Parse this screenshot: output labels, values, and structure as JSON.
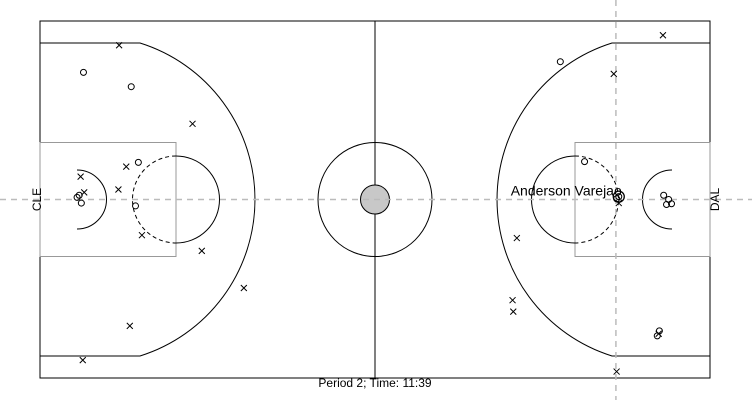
{
  "chart_data": {
    "type": "scatter",
    "title": "",
    "caption": "Period 2; Time: 11:39",
    "teams": {
      "left": "CLE",
      "right": "DAL"
    },
    "xlim": [
      0,
      94
    ],
    "ylim": [
      0,
      50
    ],
    "highlight_label": "Anderson Varejao",
    "highlight_point": [
      81.2,
      25.4
    ],
    "crosshair": {
      "x": 80.8,
      "y": 25
    },
    "legend": {
      "x": "x",
      "o": "o"
    },
    "series": [
      {
        "name": "",
        "marker": "x",
        "points": [
          [
            11.1,
            46.6
          ],
          [
            21.4,
            35.6
          ],
          [
            12.1,
            29.6
          ],
          [
            5.7,
            28.2
          ],
          [
            11.0,
            26.4
          ],
          [
            6.2,
            26.0
          ],
          [
            14.3,
            20.0
          ],
          [
            22.7,
            17.8
          ],
          [
            28.6,
            12.6
          ],
          [
            12.6,
            7.3
          ],
          [
            6.0,
            2.5
          ],
          [
            87.4,
            48.0
          ],
          [
            80.5,
            42.6
          ],
          [
            66.9,
            19.6
          ],
          [
            66.3,
            10.9
          ],
          [
            66.4,
            9.3
          ],
          [
            86.8,
            6.2
          ],
          [
            80.9,
            0.9
          ],
          [
            81.2,
            24.5
          ]
        ]
      },
      {
        "name": "",
        "marker": "o",
        "points": [
          [
            6.1,
            42.8
          ],
          [
            12.8,
            40.8
          ],
          [
            13.8,
            30.2
          ],
          [
            5.2,
            25.3
          ],
          [
            5.8,
            24.5
          ],
          [
            5.5,
            25.6
          ],
          [
            13.4,
            24.1
          ],
          [
            73.0,
            44.3
          ],
          [
            76.4,
            30.3
          ],
          [
            81.2,
            25.4
          ],
          [
            80.9,
            25.1
          ],
          [
            87.5,
            25.6
          ],
          [
            88.2,
            25.0
          ],
          [
            88.6,
            24.4
          ],
          [
            87.9,
            24.3
          ],
          [
            86.9,
            6.6
          ],
          [
            86.6,
            5.9
          ]
        ]
      }
    ]
  }
}
